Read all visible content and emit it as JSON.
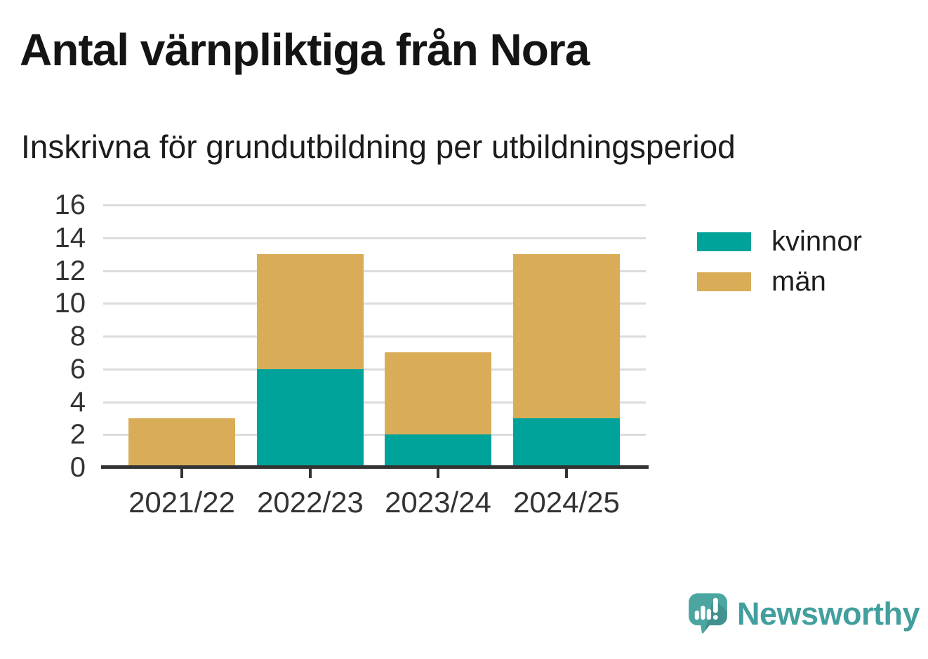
{
  "chart_data": {
    "type": "bar",
    "stacked": true,
    "title": "Antal värnpliktiga från Nora",
    "subtitle": "Inskrivna för grundutbildning per utbildningsperiod",
    "categories": [
      "2021/22",
      "2022/23",
      "2023/24",
      "2024/25"
    ],
    "series": [
      {
        "name": "kvinnor",
        "color": "#00a39a",
        "values": [
          0,
          6,
          2,
          3
        ]
      },
      {
        "name": "män",
        "color": "#d9ad58",
        "values": [
          3,
          7,
          5,
          10
        ]
      }
    ],
    "totals": [
      3,
      13,
      7,
      13
    ],
    "ylim": [
      0,
      16
    ],
    "ytick_step": 2,
    "yticks": [
      0,
      2,
      4,
      6,
      8,
      10,
      12,
      14,
      16
    ],
    "grid": true,
    "legend_position": "right",
    "xlabel": "",
    "ylabel": ""
  },
  "style": {
    "grid_color": "#dcdcdc",
    "axis_color": "#333333",
    "kvinnor_color": "#00a39a",
    "man_color": "#d9ad58"
  },
  "branding": {
    "name": "Newsworthy",
    "text_color": "#429f9e",
    "icon_color": "#4ba6a2"
  }
}
